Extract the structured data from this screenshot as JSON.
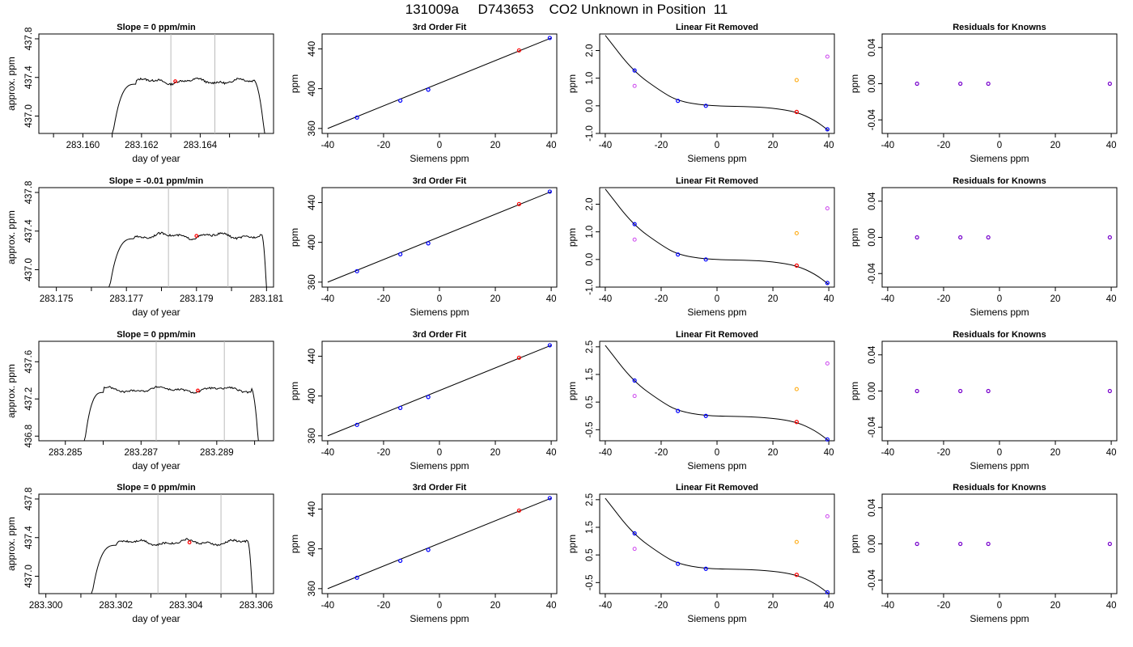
{
  "figure_title": "131009a     D743653    CO2 Unknown in Position  11",
  "colors": {
    "line": "#000000",
    "marker_blue": "#0000ff",
    "marker_red": "#ff0000",
    "marker_magenta": "#cc44ee",
    "marker_orange": "#ffa500",
    "marker_purple": "#7700cc",
    "window_lines": "#bbbbbb"
  },
  "chart_data": [
    {
      "type": "line",
      "title": "Slope =  0  ppm/min",
      "xlabel": "day of year",
      "ylabel": "approx. ppm",
      "xlim": [
        283.1585,
        283.1665
      ],
      "ylim": [
        436.82,
        437.85
      ],
      "xticks": [
        "283.160",
        "283.162",
        "283.164"
      ],
      "yticks": [
        "437.0",
        "437.4",
        "437.8"
      ],
      "window": [
        283.163,
        283.1645
      ],
      "plateau": 437.36,
      "rise": [
        283.161,
        283.1618
      ],
      "fall": [
        283.1658,
        283.1662
      ],
      "mean_point": [
        283.16315,
        437.36
      ],
      "grid": false
    },
    {
      "type": "scatter",
      "title": "3rd Order Fit",
      "xlabel": "Siemens ppm",
      "ylabel": "ppm",
      "xlim": [
        -42,
        42
      ],
      "ylim": [
        355,
        455
      ],
      "xticks": [
        "-40",
        "-20",
        "0",
        "20",
        "40"
      ],
      "yticks": [
        "360",
        "400",
        "440"
      ],
      "knowns": {
        "x": [
          -29.5,
          -14,
          -4,
          39.5
        ],
        "y": [
          371,
          388,
          399,
          451
        ]
      },
      "unknown": {
        "x": [
          28.5
        ],
        "y": [
          438.5
        ]
      },
      "fit_line": {
        "x": [
          -40,
          40
        ],
        "y": [
          360,
          451
        ]
      }
    },
    {
      "type": "scatter",
      "title": "Linear Fit Removed",
      "xlabel": "Siemens ppm",
      "ylabel": "ppm",
      "xlim": [
        -42,
        42
      ],
      "ylim": [
        -1.0,
        2.6
      ],
      "xticks": [
        "-40",
        "-20",
        "0",
        "20",
        "40"
      ],
      "yticks": [
        "-1.0",
        "0.0",
        "1.0",
        "2.0"
      ],
      "knowns": {
        "x": [
          -29.5,
          -14,
          -4,
          39.5
        ],
        "y": [
          1.28,
          0.18,
          0.0,
          -0.85
        ]
      },
      "unknown": {
        "x": [
          28.5
        ],
        "y": [
          -0.22
        ]
      },
      "extra_magenta": {
        "x": [
          -29.5,
          39.5
        ],
        "y": [
          0.72,
          1.78
        ]
      },
      "extra_orange": {
        "x": [
          28.5
        ],
        "y": [
          0.93
        ]
      },
      "curve_points": [
        [
          -40,
          2.55
        ],
        [
          -30,
          1.25
        ],
        [
          -20,
          0.52
        ],
        [
          -14,
          0.18
        ],
        [
          -4,
          0.0
        ],
        [
          10,
          -0.02
        ],
        [
          20,
          -0.08
        ],
        [
          28.5,
          -0.22
        ],
        [
          35,
          -0.52
        ],
        [
          40,
          -0.9
        ]
      ]
    },
    {
      "type": "scatter",
      "title": "Residuals for Knowns",
      "xlabel": "Siemens ppm",
      "ylabel": "ppm",
      "xlim": [
        -42,
        42
      ],
      "ylim": [
        -0.055,
        0.055
      ],
      "xticks": [
        "-40",
        "-20",
        "0",
        "20",
        "40"
      ],
      "yticks": [
        "-0.04",
        "0.00",
        "0.04"
      ],
      "knowns": {
        "x": [
          -29.5,
          -14,
          -4,
          39.5
        ],
        "y": [
          0,
          0,
          0,
          0
        ]
      }
    },
    {
      "type": "line",
      "title": "Slope =  -0.01  ppm/min",
      "xlabel": "day of year",
      "ylabel": "approx. ppm",
      "xlim": [
        283.1745,
        283.1812
      ],
      "ylim": [
        436.82,
        437.85
      ],
      "xticks": [
        "283.175",
        "283.177",
        "283.179",
        "283.181"
      ],
      "yticks": [
        "437.0",
        "437.4",
        "437.8"
      ],
      "window": [
        283.1782,
        283.1799
      ],
      "plateau": 437.35,
      "rise": [
        283.1765,
        283.1772
      ],
      "fall": [
        283.18085,
        283.181
      ],
      "mean_point": [
        283.179,
        437.35
      ],
      "grid": false
    },
    {
      "type": "scatter",
      "title": "3rd Order Fit",
      "xlabel": "Siemens ppm",
      "ylabel": "ppm",
      "xlim": [
        -42,
        42
      ],
      "ylim": [
        355,
        455
      ],
      "xticks": [
        "-40",
        "-20",
        "0",
        "20",
        "40"
      ],
      "yticks": [
        "360",
        "400",
        "440"
      ],
      "knowns": {
        "x": [
          -29.5,
          -14,
          -4,
          39.5
        ],
        "y": [
          371,
          388,
          399,
          451
        ]
      },
      "unknown": {
        "x": [
          28.5
        ],
        "y": [
          438.5
        ]
      },
      "fit_line": {
        "x": [
          -40,
          40
        ],
        "y": [
          360,
          451
        ]
      }
    },
    {
      "type": "scatter",
      "title": "Linear Fit Removed",
      "xlabel": "Siemens ppm",
      "ylabel": "ppm",
      "xlim": [
        -42,
        42
      ],
      "ylim": [
        -1.0,
        2.6
      ],
      "xticks": [
        "-40",
        "-20",
        "0",
        "20",
        "40"
      ],
      "yticks": [
        "-1.0",
        "0.0",
        "1.0",
        "2.0"
      ],
      "knowns": {
        "x": [
          -29.5,
          -14,
          -4,
          39.5
        ],
        "y": [
          1.28,
          0.18,
          0.0,
          -0.85
        ]
      },
      "unknown": {
        "x": [
          28.5
        ],
        "y": [
          -0.22
        ]
      },
      "extra_magenta": {
        "x": [
          -29.5,
          39.5
        ],
        "y": [
          0.72,
          1.85
        ]
      },
      "extra_orange": {
        "x": [
          28.5
        ],
        "y": [
          0.95
        ]
      },
      "curve_points": [
        [
          -40,
          2.55
        ],
        [
          -30,
          1.25
        ],
        [
          -20,
          0.52
        ],
        [
          -14,
          0.18
        ],
        [
          -4,
          0.0
        ],
        [
          10,
          -0.02
        ],
        [
          20,
          -0.08
        ],
        [
          28.5,
          -0.22
        ],
        [
          35,
          -0.52
        ],
        [
          40,
          -0.9
        ]
      ]
    },
    {
      "type": "scatter",
      "title": "Residuals for Knowns",
      "xlabel": "Siemens ppm",
      "ylabel": "ppm",
      "xlim": [
        -42,
        42
      ],
      "ylim": [
        -0.055,
        0.055
      ],
      "xticks": [
        "-40",
        "-20",
        "0",
        "20",
        "40"
      ],
      "yticks": [
        "-0.04",
        "0.00",
        "0.04"
      ],
      "knowns": {
        "x": [
          -29.5,
          -14,
          -4,
          39.5
        ],
        "y": [
          0,
          0,
          0,
          0
        ]
      }
    },
    {
      "type": "line",
      "title": "Slope =  0  ppm/min",
      "xlabel": "day of year",
      "ylabel": "approx. ppm",
      "xlim": [
        283.2843,
        283.2905
      ],
      "ylim": [
        436.75,
        437.82
      ],
      "xticks": [
        "283.285",
        "283.287",
        "283.289"
      ],
      "yticks": [
        "436.8",
        "437.2",
        "437.6"
      ],
      "window": [
        283.2874,
        283.2892
      ],
      "plateau": 437.3,
      "rise": [
        283.2855,
        283.286
      ],
      "fall": [
        283.2899,
        283.2901
      ],
      "mean_point": [
        283.2885,
        437.29
      ],
      "grid": false
    },
    {
      "type": "scatter",
      "title": "3rd Order Fit",
      "xlabel": "Siemens ppm",
      "ylabel": "ppm",
      "xlim": [
        -42,
        42
      ],
      "ylim": [
        355,
        455
      ],
      "xticks": [
        "-40",
        "-20",
        "0",
        "20",
        "40"
      ],
      "yticks": [
        "360",
        "400",
        "440"
      ],
      "knowns": {
        "x": [
          -29.5,
          -14,
          -4,
          39.5
        ],
        "y": [
          371,
          388,
          399,
          451
        ]
      },
      "unknown": {
        "x": [
          28.5
        ],
        "y": [
          438.5
        ]
      },
      "fit_line": {
        "x": [
          -40,
          40
        ],
        "y": [
          360,
          451
        ]
      }
    },
    {
      "type": "scatter",
      "title": "Linear Fit Removed",
      "xlabel": "Siemens ppm",
      "ylabel": "ppm",
      "xlim": [
        -42,
        42
      ],
      "ylim": [
        -0.9,
        2.7
      ],
      "xticks": [
        "-40",
        "-20",
        "0",
        "20",
        "40"
      ],
      "yticks": [
        "-0.5",
        "0.5",
        "1.5",
        "2.5"
      ],
      "knowns": {
        "x": [
          -29.5,
          -14,
          -4,
          39.5
        ],
        "y": [
          1.28,
          0.18,
          0.0,
          -0.85
        ]
      },
      "unknown": {
        "x": [
          28.5
        ],
        "y": [
          -0.22
        ]
      },
      "extra_magenta": {
        "x": [
          -29.5,
          39.5
        ],
        "y": [
          0.72,
          1.9
        ]
      },
      "extra_orange": {
        "x": [
          28.5
        ],
        "y": [
          0.97
        ]
      },
      "curve_points": [
        [
          -40,
          2.55
        ],
        [
          -30,
          1.25
        ],
        [
          -20,
          0.52
        ],
        [
          -14,
          0.18
        ],
        [
          -4,
          0.0
        ],
        [
          10,
          -0.02
        ],
        [
          20,
          -0.08
        ],
        [
          28.5,
          -0.22
        ],
        [
          35,
          -0.52
        ],
        [
          40,
          -0.9
        ]
      ]
    },
    {
      "type": "scatter",
      "title": "Residuals for Knowns",
      "xlabel": "Siemens ppm",
      "ylabel": "ppm",
      "xlim": [
        -42,
        42
      ],
      "ylim": [
        -0.055,
        0.055
      ],
      "xticks": [
        "-40",
        "-20",
        "0",
        "20",
        "40"
      ],
      "yticks": [
        "-0.04",
        "0.00",
        "0.04"
      ],
      "knowns": {
        "x": [
          -29.5,
          -14,
          -4,
          39.5
        ],
        "y": [
          0,
          0,
          0,
          0
        ]
      }
    },
    {
      "type": "line",
      "title": "Slope =  0  ppm/min",
      "xlabel": "day of year",
      "ylabel": "approx. ppm",
      "xlim": [
        283.2998,
        283.3065
      ],
      "ylim": [
        436.82,
        437.85
      ],
      "xticks": [
        "283.300",
        "283.302",
        "283.304",
        "283.306"
      ],
      "yticks": [
        "437.0",
        "437.4",
        "437.8"
      ],
      "window": [
        283.3032,
        283.305
      ],
      "plateau": 437.35,
      "rise": [
        283.3013,
        283.302
      ],
      "fall": [
        283.30575,
        283.3059
      ],
      "mean_point": [
        283.3041,
        437.35
      ],
      "grid": false
    },
    {
      "type": "scatter",
      "title": "3rd Order Fit",
      "xlabel": "Siemens ppm",
      "ylabel": "ppm",
      "xlim": [
        -42,
        42
      ],
      "ylim": [
        355,
        455
      ],
      "xticks": [
        "-40",
        "-20",
        "0",
        "20",
        "40"
      ],
      "yticks": [
        "360",
        "400",
        "440"
      ],
      "knowns": {
        "x": [
          -29.5,
          -14,
          -4,
          39.5
        ],
        "y": [
          371,
          388,
          399,
          451
        ]
      },
      "unknown": {
        "x": [
          28.5
        ],
        "y": [
          438.5
        ]
      },
      "fit_line": {
        "x": [
          -40,
          40
        ],
        "y": [
          360,
          451
        ]
      }
    },
    {
      "type": "scatter",
      "title": "Linear Fit Removed",
      "xlabel": "Siemens ppm",
      "ylabel": "ppm",
      "xlim": [
        -42,
        42
      ],
      "ylim": [
        -0.9,
        2.7
      ],
      "xticks": [
        "-40",
        "-20",
        "0",
        "20",
        "40"
      ],
      "yticks": [
        "-0.5",
        "0.5",
        "1.5",
        "2.5"
      ],
      "knowns": {
        "x": [
          -29.5,
          -14,
          -4,
          39.5
        ],
        "y": [
          1.28,
          0.18,
          0.0,
          -0.85
        ]
      },
      "unknown": {
        "x": [
          28.5
        ],
        "y": [
          -0.22
        ]
      },
      "extra_magenta": {
        "x": [
          -29.5,
          39.5
        ],
        "y": [
          0.72,
          1.9
        ]
      },
      "extra_orange": {
        "x": [
          28.5
        ],
        "y": [
          0.97
        ]
      },
      "curve_points": [
        [
          -40,
          2.55
        ],
        [
          -30,
          1.25
        ],
        [
          -20,
          0.52
        ],
        [
          -14,
          0.18
        ],
        [
          -4,
          0.0
        ],
        [
          10,
          -0.02
        ],
        [
          20,
          -0.08
        ],
        [
          28.5,
          -0.22
        ],
        [
          35,
          -0.52
        ],
        [
          40,
          -0.9
        ]
      ]
    },
    {
      "type": "scatter",
      "title": "Residuals for Knowns",
      "xlabel": "Siemens ppm",
      "ylabel": "ppm",
      "xlim": [
        -42,
        42
      ],
      "ylim": [
        -0.055,
        0.055
      ],
      "xticks": [
        "-40",
        "-20",
        "0",
        "20",
        "40"
      ],
      "yticks": [
        "-0.04",
        "0.00",
        "0.04"
      ],
      "knowns": {
        "x": [
          -29.5,
          -14,
          -4,
          39.5
        ],
        "y": [
          0,
          0,
          0,
          0
        ]
      }
    }
  ]
}
